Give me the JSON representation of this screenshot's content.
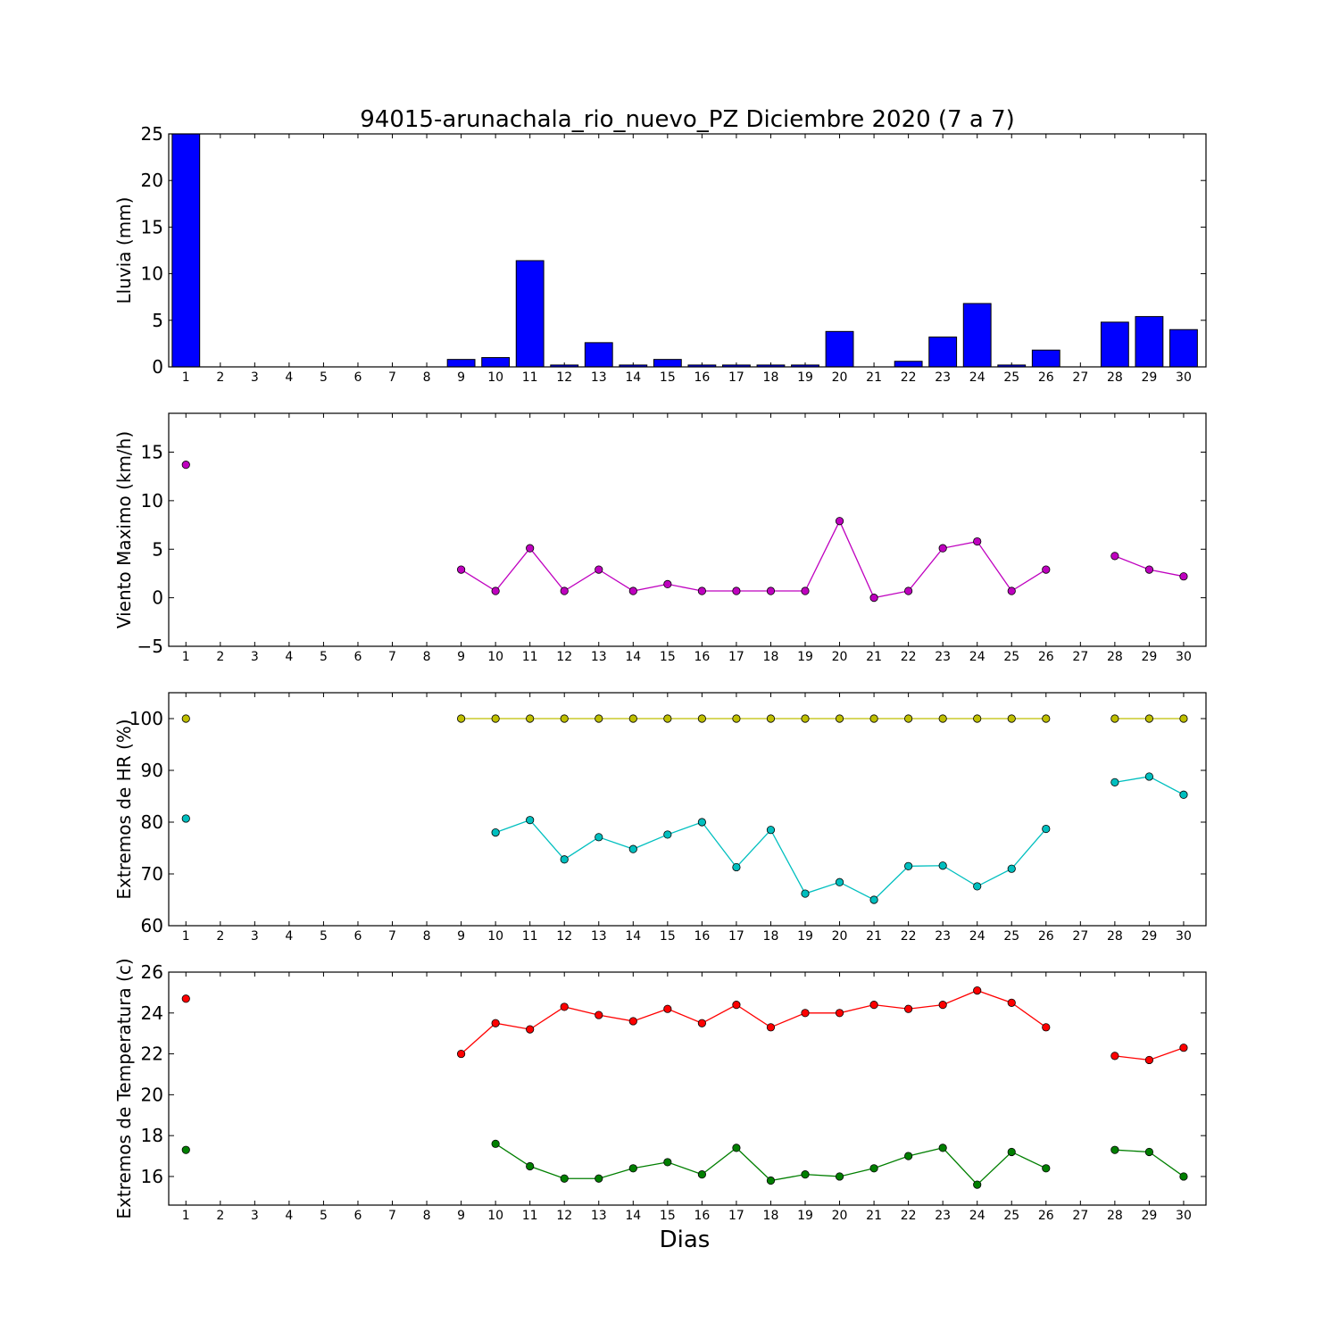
{
  "chart_data": [
    {
      "type": "bar",
      "title": "94015-arunachala_rio_nuevo_PZ Diciembre 2020  (7 a 7)",
      "ylabel": "Lluvia (mm)",
      "xlabel": "",
      "ylim": [
        0,
        25
      ],
      "yticks": [
        "0",
        "5",
        "10",
        "15",
        "20",
        "25"
      ],
      "categories": [
        "1",
        "2",
        "3",
        "4",
        "5",
        "6",
        "7",
        "8",
        "9",
        "10",
        "11",
        "12",
        "13",
        "14",
        "15",
        "16",
        "17",
        "18",
        "19",
        "20",
        "21",
        "22",
        "23",
        "24",
        "25",
        "26",
        "27",
        "28",
        "29",
        "30"
      ],
      "series": [
        {
          "color": "#0000ff",
          "values": [
            25,
            null,
            null,
            null,
            null,
            null,
            null,
            null,
            0.8,
            1.0,
            11.4,
            0.2,
            2.6,
            0.2,
            0.8,
            0.2,
            0.2,
            0.2,
            0.2,
            3.8,
            null,
            0.6,
            3.2,
            6.8,
            0.2,
            1.8,
            null,
            4.8,
            5.4,
            4.0
          ]
        }
      ]
    },
    {
      "type": "line",
      "ylabel": "Viento Maximo (km/h)",
      "ylim": [
        -5,
        19
      ],
      "yticks": [
        "−5",
        "0",
        "5",
        "10",
        "15"
      ],
      "categories": [
        "1",
        "2",
        "3",
        "4",
        "5",
        "6",
        "7",
        "8",
        "9",
        "10",
        "11",
        "12",
        "13",
        "14",
        "15",
        "16",
        "17",
        "18",
        "19",
        "20",
        "21",
        "22",
        "23",
        "24",
        "25",
        "26",
        "27",
        "28",
        "29",
        "30"
      ],
      "series": [
        {
          "color": "#bf00bf",
          "values": [
            13.7,
            null,
            null,
            null,
            null,
            null,
            null,
            null,
            2.9,
            0.7,
            5.1,
            0.7,
            2.9,
            0.7,
            1.4,
            0.7,
            0.7,
            0.7,
            0.7,
            7.9,
            0.0,
            0.7,
            5.1,
            5.8,
            0.7,
            2.9,
            null,
            4.3,
            2.9,
            2.2
          ]
        }
      ]
    },
    {
      "type": "line",
      "ylabel": "Extremos de HR (%)",
      "ylim": [
        60,
        105
      ],
      "yticks": [
        "60",
        "70",
        "80",
        "90",
        "100"
      ],
      "categories": [
        "1",
        "2",
        "3",
        "4",
        "5",
        "6",
        "7",
        "8",
        "9",
        "10",
        "11",
        "12",
        "13",
        "14",
        "15",
        "16",
        "17",
        "18",
        "19",
        "20",
        "21",
        "22",
        "23",
        "24",
        "25",
        "26",
        "27",
        "28",
        "29",
        "30"
      ],
      "series": [
        {
          "color": "#bfbf00",
          "values": [
            100,
            null,
            null,
            null,
            null,
            null,
            null,
            null,
            100,
            100,
            100,
            100,
            100,
            100,
            100,
            100,
            100,
            100,
            100,
            100,
            100,
            100,
            100,
            100,
            100,
            100,
            null,
            100,
            100,
            100
          ]
        },
        {
          "color": "#00bfbf",
          "values": [
            80.7,
            null,
            null,
            null,
            null,
            null,
            null,
            null,
            null,
            78.0,
            80.4,
            72.8,
            77.1,
            74.8,
            77.6,
            80.0,
            71.3,
            78.5,
            66.2,
            68.4,
            65.0,
            71.5,
            71.6,
            67.6,
            71.0,
            78.7,
            null,
            87.7,
            88.8,
            85.3
          ]
        }
      ]
    },
    {
      "type": "line",
      "ylabel": "Extremos de Temperatura (c)",
      "xlabel": "Dias",
      "ylim": [
        14.6,
        26
      ],
      "yticks": [
        "16",
        "18",
        "20",
        "22",
        "24",
        "26"
      ],
      "categories": [
        "1",
        "2",
        "3",
        "4",
        "5",
        "6",
        "7",
        "8",
        "9",
        "10",
        "11",
        "12",
        "13",
        "14",
        "15",
        "16",
        "17",
        "18",
        "19",
        "20",
        "21",
        "22",
        "23",
        "24",
        "25",
        "26",
        "27",
        "28",
        "29",
        "30"
      ],
      "series": [
        {
          "color": "#ff0000",
          "values": [
            24.7,
            null,
            null,
            null,
            null,
            null,
            null,
            null,
            22.0,
            23.5,
            23.2,
            24.3,
            23.9,
            23.6,
            24.2,
            23.5,
            24.4,
            23.3,
            24.0,
            24.0,
            24.4,
            24.2,
            24.4,
            25.1,
            24.5,
            23.3,
            null,
            21.9,
            21.7,
            22.3
          ]
        },
        {
          "color": "#007f00",
          "values": [
            17.3,
            null,
            null,
            null,
            null,
            null,
            null,
            null,
            null,
            17.6,
            16.5,
            15.9,
            15.9,
            16.4,
            16.7,
            16.1,
            17.4,
            15.8,
            16.1,
            16.0,
            16.4,
            17.0,
            17.4,
            15.6,
            17.2,
            16.4,
            null,
            17.3,
            17.2,
            16.0
          ]
        }
      ]
    }
  ]
}
